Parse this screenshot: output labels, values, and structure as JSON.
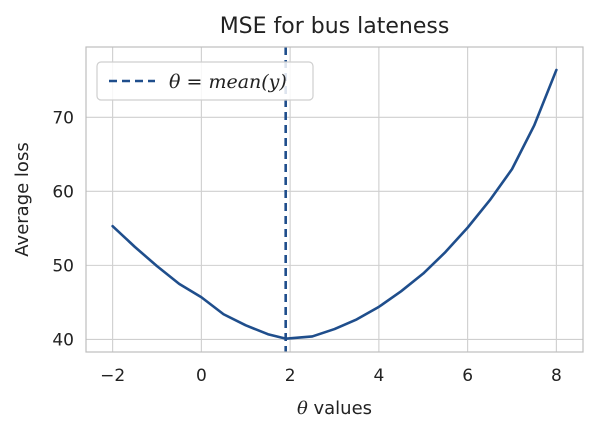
{
  "chart_data": {
    "type": "line",
    "title": "MSE for bus lateness",
    "xlabel_symbol": "θ",
    "xlabel_text": " values",
    "ylabel": "Average loss",
    "xlim": [
      -2.6,
      8.6
    ],
    "ylim": [
      38.3,
      79.5
    ],
    "xticks": [
      -2,
      0,
      2,
      4,
      6,
      8
    ],
    "xtick_labels": [
      "−2",
      "0",
      "2",
      "4",
      "6",
      "8"
    ],
    "yticks": [
      40,
      50,
      60,
      70
    ],
    "ytick_labels": [
      "40",
      "50",
      "60",
      "70"
    ],
    "grid": true,
    "legend_position": "upper-left",
    "series": [
      {
        "kind": "curve",
        "color": "#1f4e8c",
        "x": [
          -2,
          -1.5,
          -1,
          -0.5,
          0,
          0.5,
          1,
          1.5,
          1.9,
          2.5,
          3,
          3.5,
          4,
          4.5,
          5,
          5.5,
          6,
          6.5,
          7,
          7.5,
          8
        ],
        "y": [
          55.3,
          52.5,
          49.9,
          47.5,
          45.7,
          43.4,
          41.9,
          40.7,
          40.1,
          40.4,
          41.4,
          42.7,
          44.4,
          46.5,
          48.9,
          51.8,
          55.1,
          58.8,
          63.0,
          68.9,
          76.4
        ]
      },
      {
        "kind": "vline",
        "name": "θ = mean(y)",
        "color": "#1f4e8c",
        "x": 1.9
      }
    ]
  }
}
